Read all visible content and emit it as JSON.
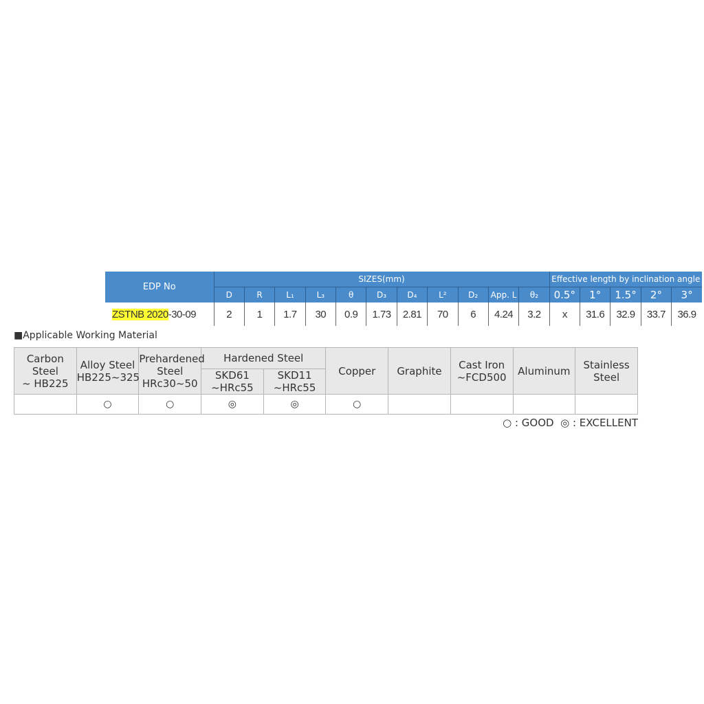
{
  "spec_table": {
    "edp_header": "EDP No",
    "sizes_header": "SIZES(mm)",
    "angle_header": "Effective length by inclination angle",
    "columns": [
      "D",
      "R",
      "L₁",
      "L₃",
      "θ",
      "D₃",
      "D₄",
      "L²",
      "D₂",
      "App. L",
      "θ₂",
      "0.5°",
      "1°",
      "1.5°",
      "2°",
      "3°"
    ],
    "row": {
      "edp_highlight": "ZSTNB 2020",
      "edp_rest": "-30-09",
      "values": [
        "2",
        "1",
        "1.7",
        "30",
        "0.9",
        "1.73",
        "2.81",
        "70",
        "6",
        "4.24",
        "3.2",
        "x",
        "31.6",
        "32.9",
        "33.7",
        "36.9"
      ]
    },
    "header_color": "#4a8bcb",
    "highlight_color": "#ffff33"
  },
  "materials": {
    "title": "■Applicable Working Material",
    "headers": [
      "Carbon Steel\n~ HB225",
      "Alloy Steel\nHB225~325",
      "Prehardened\nSteel\nHRc30~50",
      "Hardened Steel",
      "Copper",
      "Graphite",
      "Cast Iron\n~FCD500",
      "Aluminum",
      "Stainless\nSteel"
    ],
    "hardened_sub": [
      "SKD61\n~HRc55",
      "SKD11\n~HRc55"
    ],
    "ratings": [
      "",
      "○",
      "○",
      "◎",
      "◎",
      "○",
      "",
      "",
      "",
      ""
    ],
    "legend": "○ : GOOD  ◎ : EXCELLENT"
  }
}
